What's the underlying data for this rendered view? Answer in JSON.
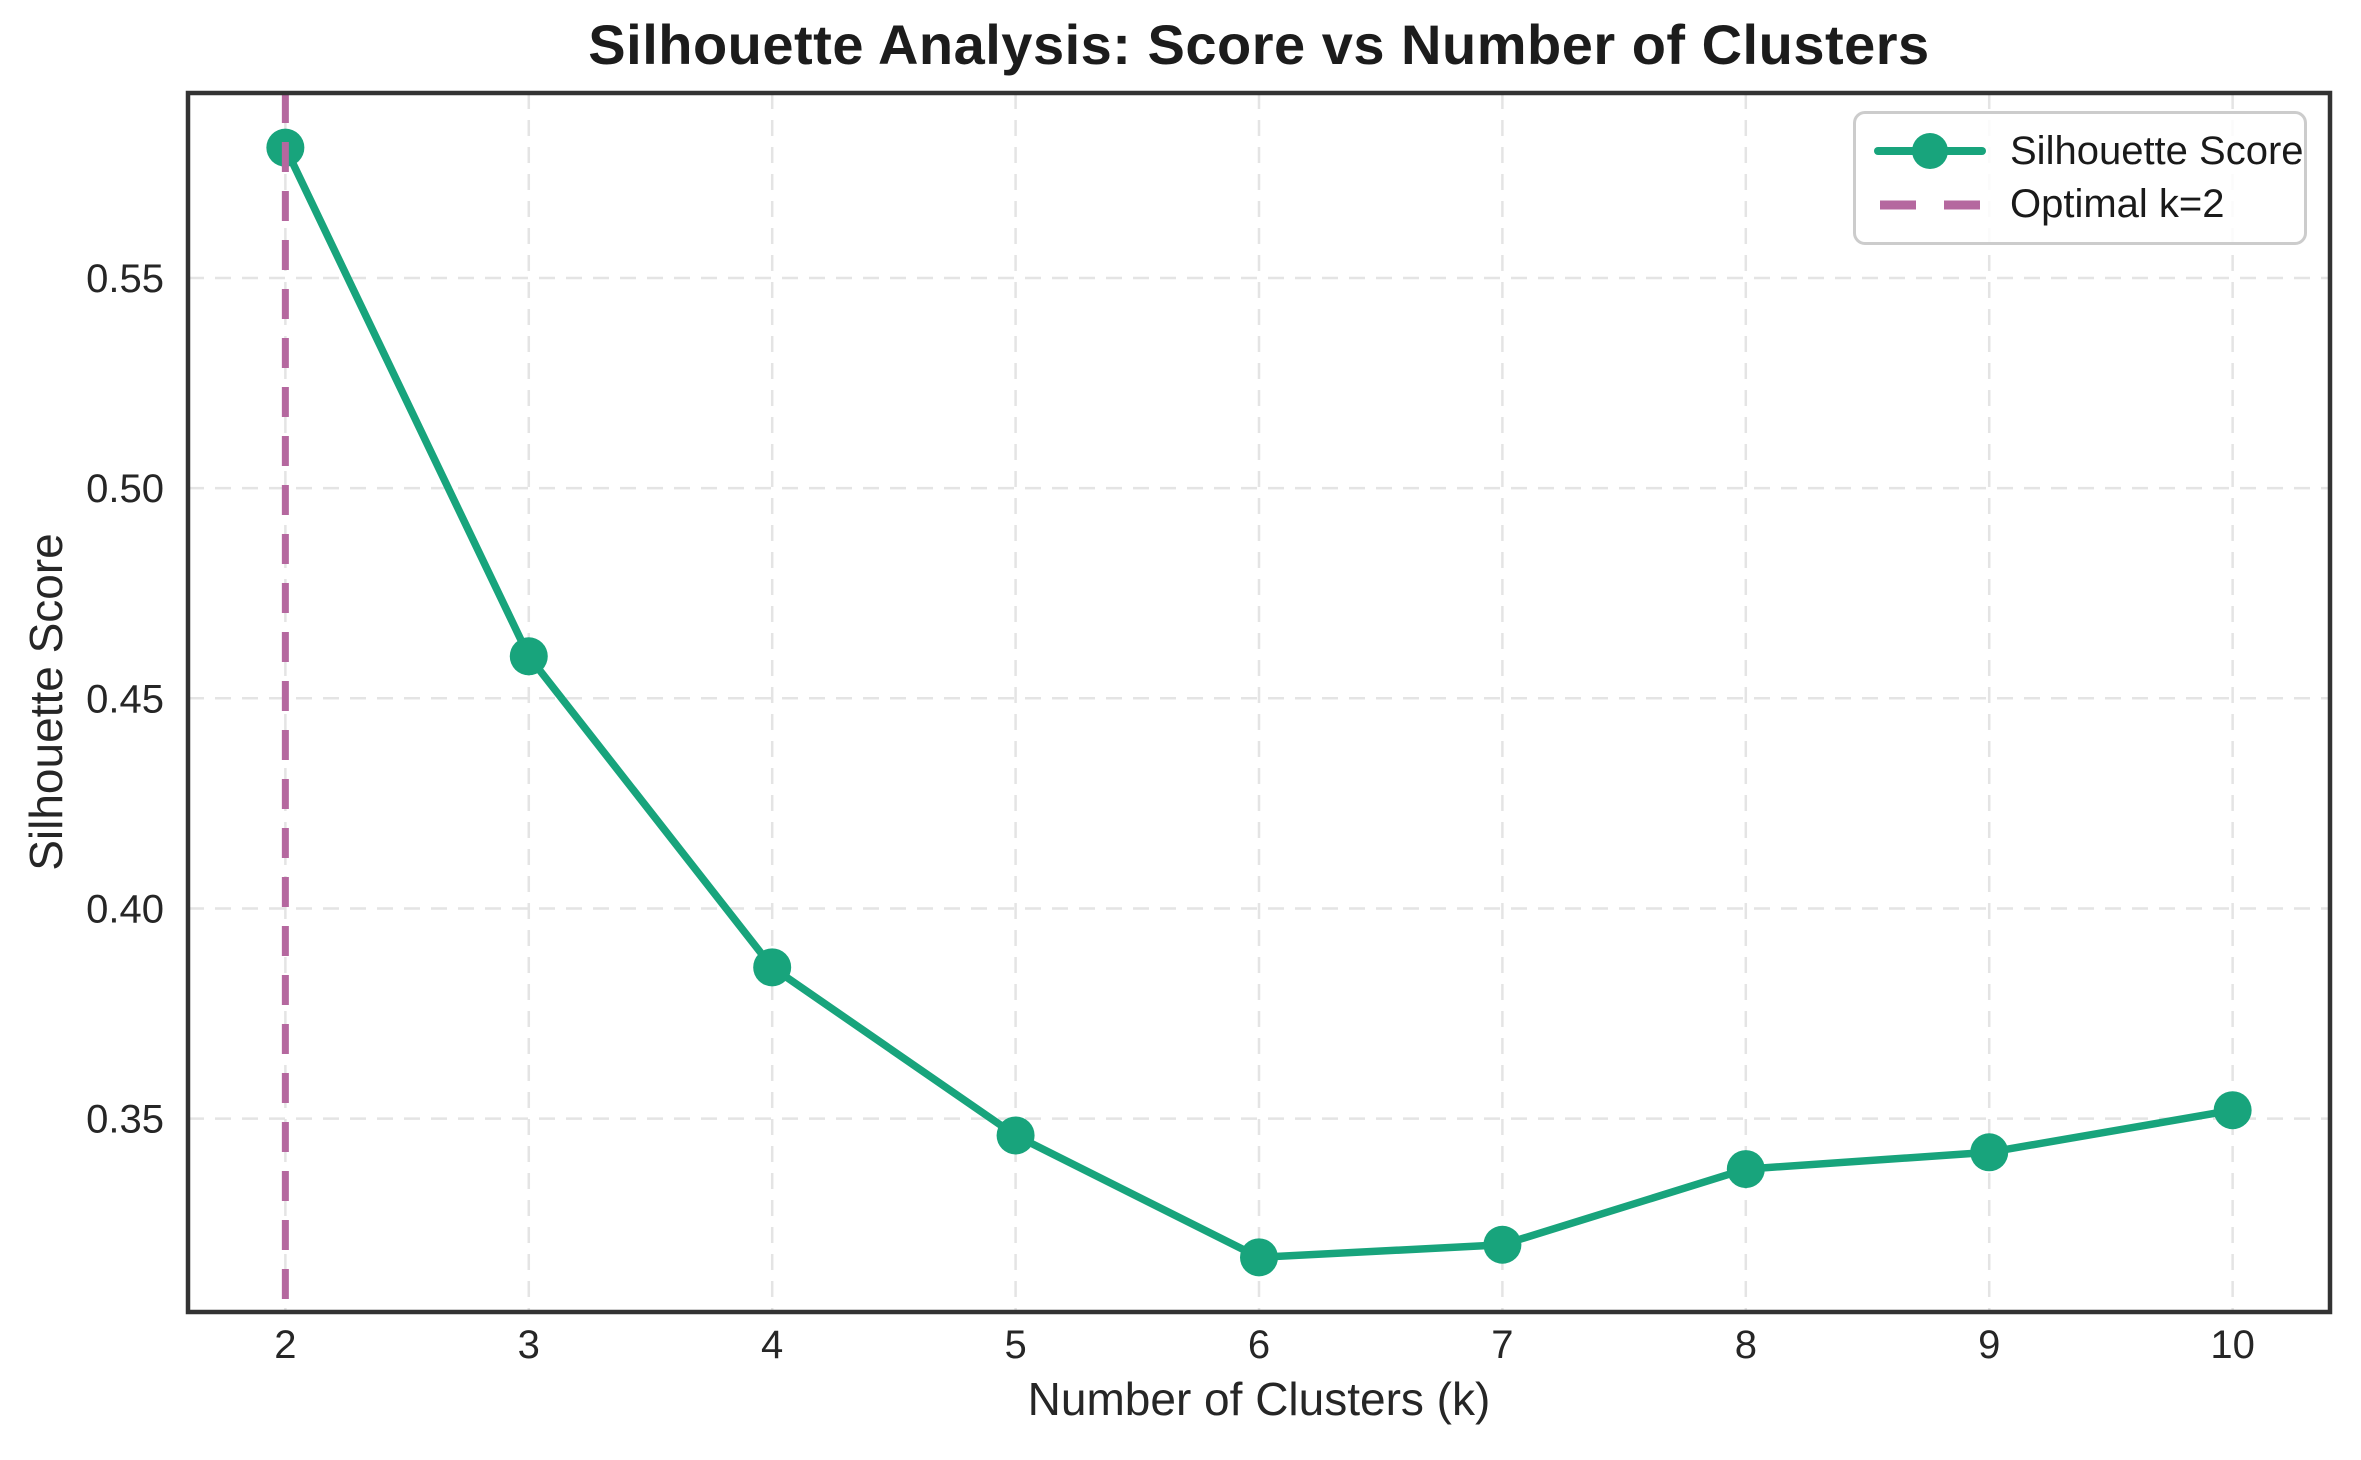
{
  "figure": {
    "title": "Silhouette Analysis: Score vs Number of Clusters",
    "xlabel": "Number of Clusters (k)",
    "ylabel": "Silhouette Score"
  },
  "legend": {
    "position": "upper right",
    "items": [
      {
        "label": "Silhouette Score",
        "sample": "line-with-marker"
      },
      {
        "label": "Optimal k=2",
        "sample": "dashed-line"
      }
    ]
  },
  "chart_data": {
    "type": "line",
    "title": "Silhouette Analysis: Score vs Number of Clusters",
    "xlabel": "Number of Clusters (k)",
    "ylabel": "Silhouette Score",
    "x": [
      2,
      3,
      4,
      5,
      6,
      7,
      8,
      9,
      10
    ],
    "series": [
      {
        "name": "Silhouette Score",
        "values": [
          0.581,
          0.46,
          0.386,
          0.346,
          0.317,
          0.32,
          0.338,
          0.342,
          0.352
        ]
      }
    ],
    "annotations": [
      {
        "type": "vline",
        "x": 2,
        "label": "Optimal k=2"
      }
    ],
    "xticks": [
      2,
      3,
      4,
      5,
      6,
      7,
      8,
      9,
      10
    ],
    "yticks": [
      0.35,
      0.4,
      0.45,
      0.5,
      0.55
    ],
    "xlim": [
      1.6,
      10.4
    ],
    "ylim": [
      0.304,
      0.594
    ],
    "grid": true,
    "grid_style": "dashed",
    "legend_position": "upper right",
    "colors": {
      "line": "#18a47c",
      "optimal": "#b5689f",
      "grid": "#e4e4e4",
      "spine": "#333333",
      "text": "#262626"
    }
  }
}
